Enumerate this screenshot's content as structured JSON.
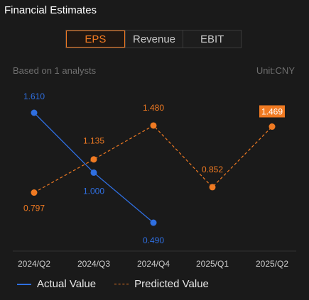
{
  "header": {
    "title": "Financial Estimates"
  },
  "tabs": [
    {
      "label": "EPS",
      "active": true
    },
    {
      "label": "Revenue",
      "active": false
    },
    {
      "label": "EBIT",
      "active": false
    }
  ],
  "meta": {
    "analysts": "Based on 1 analysts",
    "unit": "Unit:CNY"
  },
  "colors": {
    "actual": "#2f6fe0",
    "predicted": "#f07a22",
    "label_highlight_bg": "#f07a22"
  },
  "legend": {
    "actual": "Actual Value",
    "predicted": "Predicted Value"
  },
  "chart_data": {
    "type": "line",
    "categories": [
      "2024/Q2",
      "2024/Q3",
      "2024/Q4",
      "2025/Q1",
      "2025/Q2"
    ],
    "series": [
      {
        "name": "Actual Value",
        "style": "solid",
        "values": [
          1.61,
          1.0,
          0.49,
          null,
          null
        ],
        "labels": [
          "1.610",
          "1.000",
          "0.490",
          null,
          null
        ]
      },
      {
        "name": "Predicted Value",
        "style": "dashed",
        "values": [
          0.797,
          1.135,
          1.48,
          0.852,
          1.469
        ],
        "labels": [
          "0.797",
          "1.135",
          "1.480",
          "0.852",
          "1.469"
        ],
        "highlight_last": true
      }
    ],
    "ylim": [
      0.4,
      1.7
    ],
    "grid": false,
    "legend_position": "bottom-left"
  }
}
